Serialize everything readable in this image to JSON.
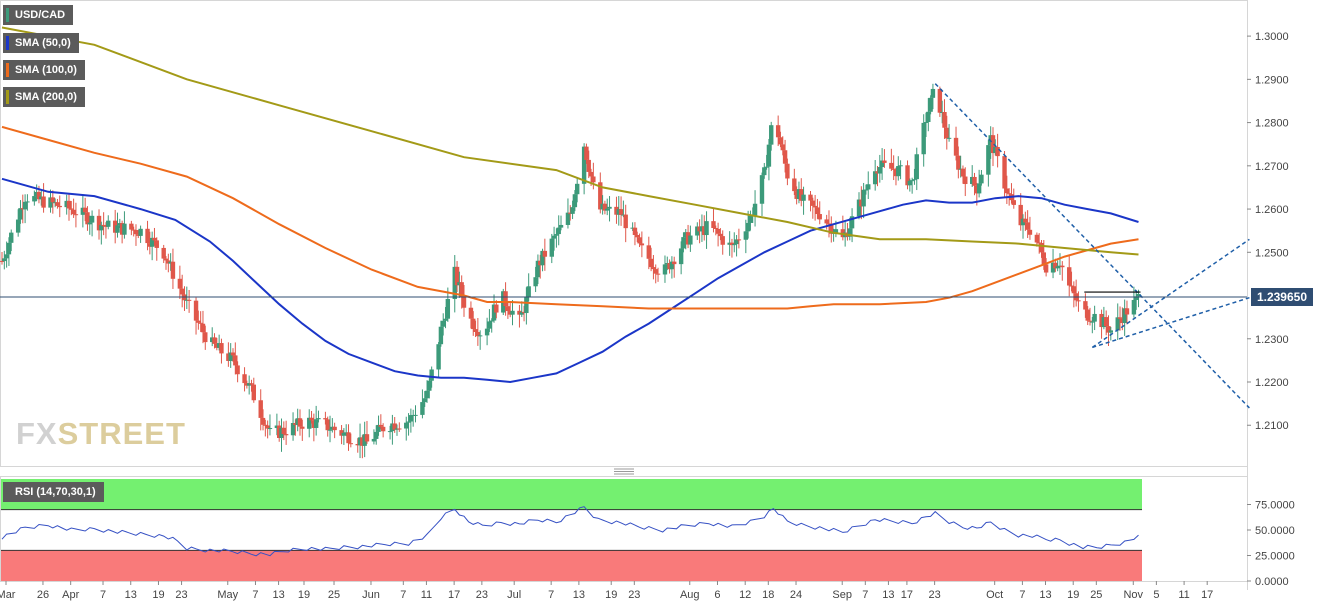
{
  "legend": {
    "symbol": "USD/CAD",
    "sma50": "SMA (50,0)",
    "sma100": "SMA (100,0)",
    "sma200": "SMA (200,0)",
    "rsi": "RSI (14,70,30,1)"
  },
  "watermark": {
    "part1": "FX",
    "part2": "STREET"
  },
  "colors": {
    "up": "#3c9a7a",
    "down": "#e0574a",
    "sma50": "#1b36c8",
    "sma100": "#ee6b1c",
    "sma200": "#a39a17",
    "trend": "#1f5fa8",
    "rsi_line": "#3651c4",
    "rsi_upper_zone": "#74f070",
    "rsi_lower_zone": "#f97a7a"
  },
  "chart_data": [
    {
      "type": "candlestick",
      "title": "USD/CAD",
      "y_axis": {
        "ticks": [
          "1.3000",
          "1.2900",
          "1.2800",
          "1.2700",
          "1.2600",
          "1.2500",
          "1.2300",
          "1.2200",
          "1.2100"
        ],
        "range": [
          1.2015,
          1.3065
        ]
      },
      "x_axis": {
        "ticks": [
          "Mar",
          "26",
          "Apr",
          "7",
          "13",
          "19",
          "23",
          "May",
          "7",
          "13",
          "19",
          "25",
          "Jun",
          "7",
          "11",
          "17",
          "23",
          "Jul",
          "7",
          "13",
          "19",
          "23",
          "Aug",
          "6",
          "12",
          "18",
          "24",
          "Sep",
          "7",
          "13",
          "17",
          "23",
          "Oct",
          "7",
          "13",
          "19",
          "25",
          "Nov",
          "5",
          "11",
          "17"
        ]
      },
      "last_price": "1.239650",
      "last_value": 1.23965,
      "anchors": [
        [
          0,
          1.248
        ],
        [
          10,
          1.263
        ],
        [
          30,
          1.26
        ],
        [
          45,
          1.256
        ],
        [
          60,
          1.255
        ],
        [
          70,
          1.25
        ],
        [
          80,
          1.238
        ],
        [
          90,
          1.229
        ],
        [
          100,
          1.225
        ],
        [
          108,
          1.218
        ],
        [
          116,
          1.208
        ],
        [
          124,
          1.209
        ],
        [
          132,
          1.211
        ],
        [
          140,
          1.21
        ],
        [
          148,
          1.208
        ],
        [
          158,
          1.206
        ],
        [
          166,
          1.21
        ],
        [
          176,
          1.211
        ],
        [
          184,
          1.217
        ],
        [
          190,
          1.232
        ],
        [
          196,
          1.245
        ],
        [
          202,
          1.235
        ],
        [
          208,
          1.231
        ],
        [
          216,
          1.24
        ],
        [
          224,
          1.234
        ],
        [
          232,
          1.247
        ],
        [
          240,
          1.254
        ],
        [
          246,
          1.259
        ],
        [
          252,
          1.275
        ],
        [
          258,
          1.26
        ],
        [
          268,
          1.259
        ],
        [
          276,
          1.251
        ],
        [
          286,
          1.245
        ],
        [
          296,
          1.253
        ],
        [
          306,
          1.256
        ],
        [
          316,
          1.251
        ],
        [
          324,
          1.258
        ],
        [
          330,
          1.268
        ],
        [
          334,
          1.282
        ],
        [
          340,
          1.268
        ],
        [
          346,
          1.262
        ],
        [
          354,
          1.259
        ],
        [
          364,
          1.253
        ],
        [
          372,
          1.262
        ],
        [
          378,
          1.27
        ],
        [
          388,
          1.269
        ],
        [
          394,
          1.266
        ],
        [
          400,
          1.281
        ],
        [
          404,
          1.288
        ],
        [
          410,
          1.275
        ],
        [
          416,
          1.268
        ],
        [
          422,
          1.265
        ],
        [
          428,
          1.276
        ],
        [
          434,
          1.266
        ],
        [
          440,
          1.257
        ],
        [
          446,
          1.255
        ],
        [
          452,
          1.247
        ],
        [
          458,
          1.248
        ],
        [
          462,
          1.242
        ],
        [
          468,
          1.236
        ],
        [
          474,
          1.235
        ],
        [
          480,
          1.232
        ],
        [
          486,
          1.236
        ],
        [
          490,
          1.238
        ],
        [
          492,
          1.2395
        ]
      ],
      "series": [
        {
          "name": "SMA (50,0)",
          "points": [
            [
              0,
              1.267
            ],
            [
              20,
              1.264
            ],
            [
              40,
              1.263
            ],
            [
              60,
              1.26
            ],
            [
              75,
              1.2575
            ],
            [
              90,
              1.2525
            ],
            [
              100,
              1.248
            ],
            [
              110,
              1.243
            ],
            [
              120,
              1.238
            ],
            [
              130,
              1.2335
            ],
            [
              140,
              1.2295
            ],
            [
              150,
              1.2265
            ],
            [
              160,
              1.2245
            ],
            [
              170,
              1.2225
            ],
            [
              180,
              1.2215
            ],
            [
              190,
              1.221
            ],
            [
              200,
              1.221
            ],
            [
              210,
              1.2205
            ],
            [
              220,
              1.22
            ],
            [
              230,
              1.221
            ],
            [
              240,
              1.222
            ],
            [
              250,
              1.2245
            ],
            [
              260,
              1.227
            ],
            [
              270,
              1.2305
            ],
            [
              280,
              1.2335
            ],
            [
              290,
              1.237
            ],
            [
              300,
              1.2405
            ],
            [
              310,
              1.244
            ],
            [
              320,
              1.247
            ],
            [
              330,
              1.25
            ],
            [
              340,
              1.2525
            ],
            [
              350,
              1.255
            ],
            [
              360,
              1.2565
            ],
            [
              370,
              1.258
            ],
            [
              380,
              1.2595
            ],
            [
              390,
              1.261
            ],
            [
              400,
              1.262
            ],
            [
              410,
              1.2615
            ],
            [
              420,
              1.2615
            ],
            [
              430,
              1.2625
            ],
            [
              440,
              1.263
            ],
            [
              450,
              1.2625
            ],
            [
              460,
              1.261
            ],
            [
              470,
              1.26
            ],
            [
              480,
              1.259
            ],
            [
              492,
              1.257
            ]
          ]
        },
        {
          "name": "SMA (100,0)",
          "points": [
            [
              0,
              1.279
            ],
            [
              20,
              1.276
            ],
            [
              40,
              1.273
            ],
            [
              60,
              1.2705
            ],
            [
              80,
              1.2675
            ],
            [
              100,
              1.2625
            ],
            [
              120,
              1.2565
            ],
            [
              140,
              1.251
            ],
            [
              160,
              1.246
            ],
            [
              180,
              1.242
            ],
            [
              200,
              1.24
            ],
            [
              210,
              1.2385
            ],
            [
              220,
              1.2385
            ],
            [
              240,
              1.238
            ],
            [
              260,
              1.2375
            ],
            [
              280,
              1.237
            ],
            [
              300,
              1.237
            ],
            [
              320,
              1.237
            ],
            [
              340,
              1.237
            ],
            [
              350,
              1.2375
            ],
            [
              360,
              1.238
            ],
            [
              380,
              1.238
            ],
            [
              400,
              1.2385
            ],
            [
              410,
              1.2395
            ],
            [
              420,
              1.241
            ],
            [
              430,
              1.243
            ],
            [
              440,
              1.245
            ],
            [
              450,
              1.247
            ],
            [
              460,
              1.249
            ],
            [
              470,
              1.2505
            ],
            [
              480,
              1.252
            ],
            [
              492,
              1.253
            ]
          ]
        },
        {
          "name": "SMA (200,0)",
          "points": [
            [
              0,
              1.302
            ],
            [
              40,
              1.298
            ],
            [
              80,
              1.29
            ],
            [
              120,
              1.284
            ],
            [
              160,
              1.278
            ],
            [
              200,
              1.272
            ],
            [
              240,
              1.269
            ],
            [
              260,
              1.265
            ],
            [
              280,
              1.263
            ],
            [
              300,
              1.261
            ],
            [
              320,
              1.259
            ],
            [
              340,
              1.257
            ],
            [
              360,
              1.2545
            ],
            [
              380,
              1.253
            ],
            [
              400,
              1.253
            ],
            [
              420,
              1.2525
            ],
            [
              440,
              1.252
            ],
            [
              460,
              1.251
            ],
            [
              480,
              1.25
            ],
            [
              492,
              1.2495
            ]
          ]
        }
      ],
      "trendlines": [
        {
          "from": [
            404,
            1.289
          ],
          "to": [
            540,
            1.214
          ]
        },
        {
          "from": [
            472,
            1.228
          ],
          "to": [
            540,
            1.253
          ]
        },
        {
          "from": [
            472,
            1.228
          ],
          "to": [
            540,
            1.2395
          ]
        }
      ]
    },
    {
      "type": "line",
      "title": "RSI (14,70,30,1)",
      "y_axis": {
        "ticks": [
          "75.0000",
          "50.0000",
          "25.0000",
          "0.0000"
        ],
        "range": [
          0,
          100
        ]
      },
      "zones": {
        "upper": [
          70,
          100
        ],
        "lower": [
          0,
          30
        ]
      },
      "series": [
        {
          "name": "RSI (14,70,30,1)",
          "points": [
            [
              0,
              43
            ],
            [
              10,
              52
            ],
            [
              20,
              55
            ],
            [
              30,
              50
            ],
            [
              40,
              51
            ],
            [
              50,
              48
            ],
            [
              60,
              46
            ],
            [
              70,
              44
            ],
            [
              75,
              40
            ],
            [
              80,
              32
            ],
            [
              90,
              30
            ],
            [
              100,
              29
            ],
            [
              108,
              27
            ],
            [
              116,
              26
            ],
            [
              124,
              30
            ],
            [
              132,
              32
            ],
            [
              140,
              31
            ],
            [
              148,
              33
            ],
            [
              158,
              34
            ],
            [
              166,
              36
            ],
            [
              176,
              37
            ],
            [
              184,
              44
            ],
            [
              190,
              62
            ],
            [
              196,
              71
            ],
            [
              202,
              58
            ],
            [
              208,
              54
            ],
            [
              216,
              57
            ],
            [
              224,
              56
            ],
            [
              232,
              60
            ],
            [
              240,
              58
            ],
            [
              246,
              65
            ],
            [
              252,
              72
            ],
            [
              258,
              60
            ],
            [
              268,
              57
            ],
            [
              276,
              53
            ],
            [
              286,
              50
            ],
            [
              296,
              54
            ],
            [
              306,
              57
            ],
            [
              316,
              53
            ],
            [
              324,
              58
            ],
            [
              330,
              64
            ],
            [
              334,
              71
            ],
            [
              340,
              58
            ],
            [
              346,
              55
            ],
            [
              354,
              52
            ],
            [
              364,
              48
            ],
            [
              372,
              55
            ],
            [
              378,
              60
            ],
            [
              388,
              58
            ],
            [
              394,
              57
            ],
            [
              400,
              63
            ],
            [
              404,
              66
            ],
            [
              410,
              58
            ],
            [
              416,
              53
            ],
            [
              422,
              52
            ],
            [
              428,
              57
            ],
            [
              434,
              50
            ],
            [
              440,
              45
            ],
            [
              446,
              44
            ],
            [
              452,
              41
            ],
            [
              458,
              40
            ],
            [
              462,
              37
            ],
            [
              468,
              33
            ],
            [
              474,
              33
            ],
            [
              480,
              35
            ],
            [
              486,
              38
            ],
            [
              490,
              42
            ],
            [
              492,
              43
            ]
          ]
        }
      ]
    }
  ]
}
